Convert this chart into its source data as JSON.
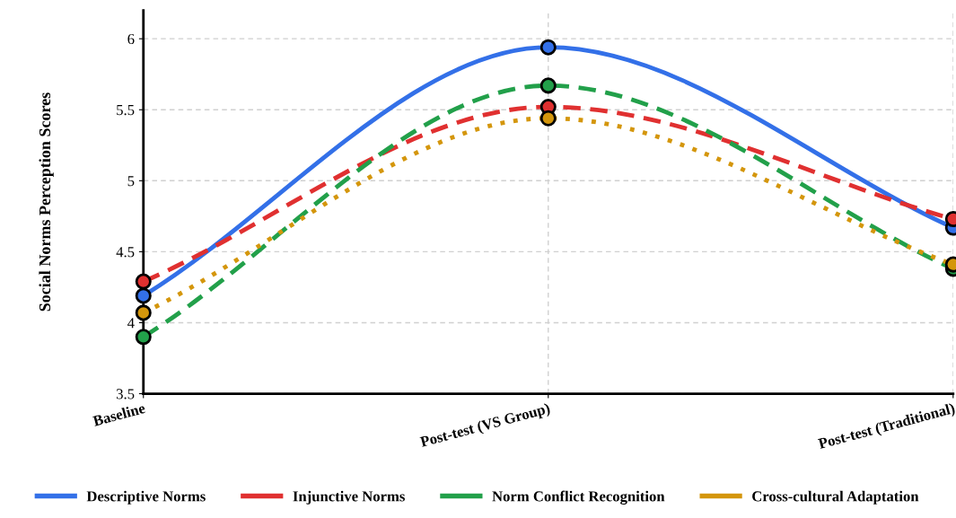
{
  "chart_data": {
    "type": "line",
    "ylabel": "Social Norms Perception Scores",
    "categories": [
      "Baseline",
      "Post-test (VS Group)",
      "Post-test (Traditional)"
    ],
    "series": [
      {
        "name": "Descriptive Norms",
        "color": "#3370e8",
        "values": [
          4.19,
          5.94,
          4.67
        ],
        "line_style": "solid"
      },
      {
        "name": "Injunctive Norms",
        "color": "#e03030",
        "values": [
          4.29,
          5.52,
          4.73
        ],
        "line_style": "dashed"
      },
      {
        "name": "Norm Conflict Recognition",
        "color": "#22a04a",
        "values": [
          3.9,
          5.67,
          4.38
        ],
        "line_style": "dashed"
      },
      {
        "name": "Cross-cultural Adaptation",
        "color": "#d4960c",
        "values": [
          4.07,
          5.44,
          4.41
        ],
        "line_style": "dotted"
      }
    ],
    "ylim": [
      3.5,
      6.2
    ],
    "yticks": [
      3.5,
      4,
      4.5,
      5,
      5.5,
      6
    ],
    "grid": true,
    "legend": "bottom",
    "marker": "circle"
  }
}
